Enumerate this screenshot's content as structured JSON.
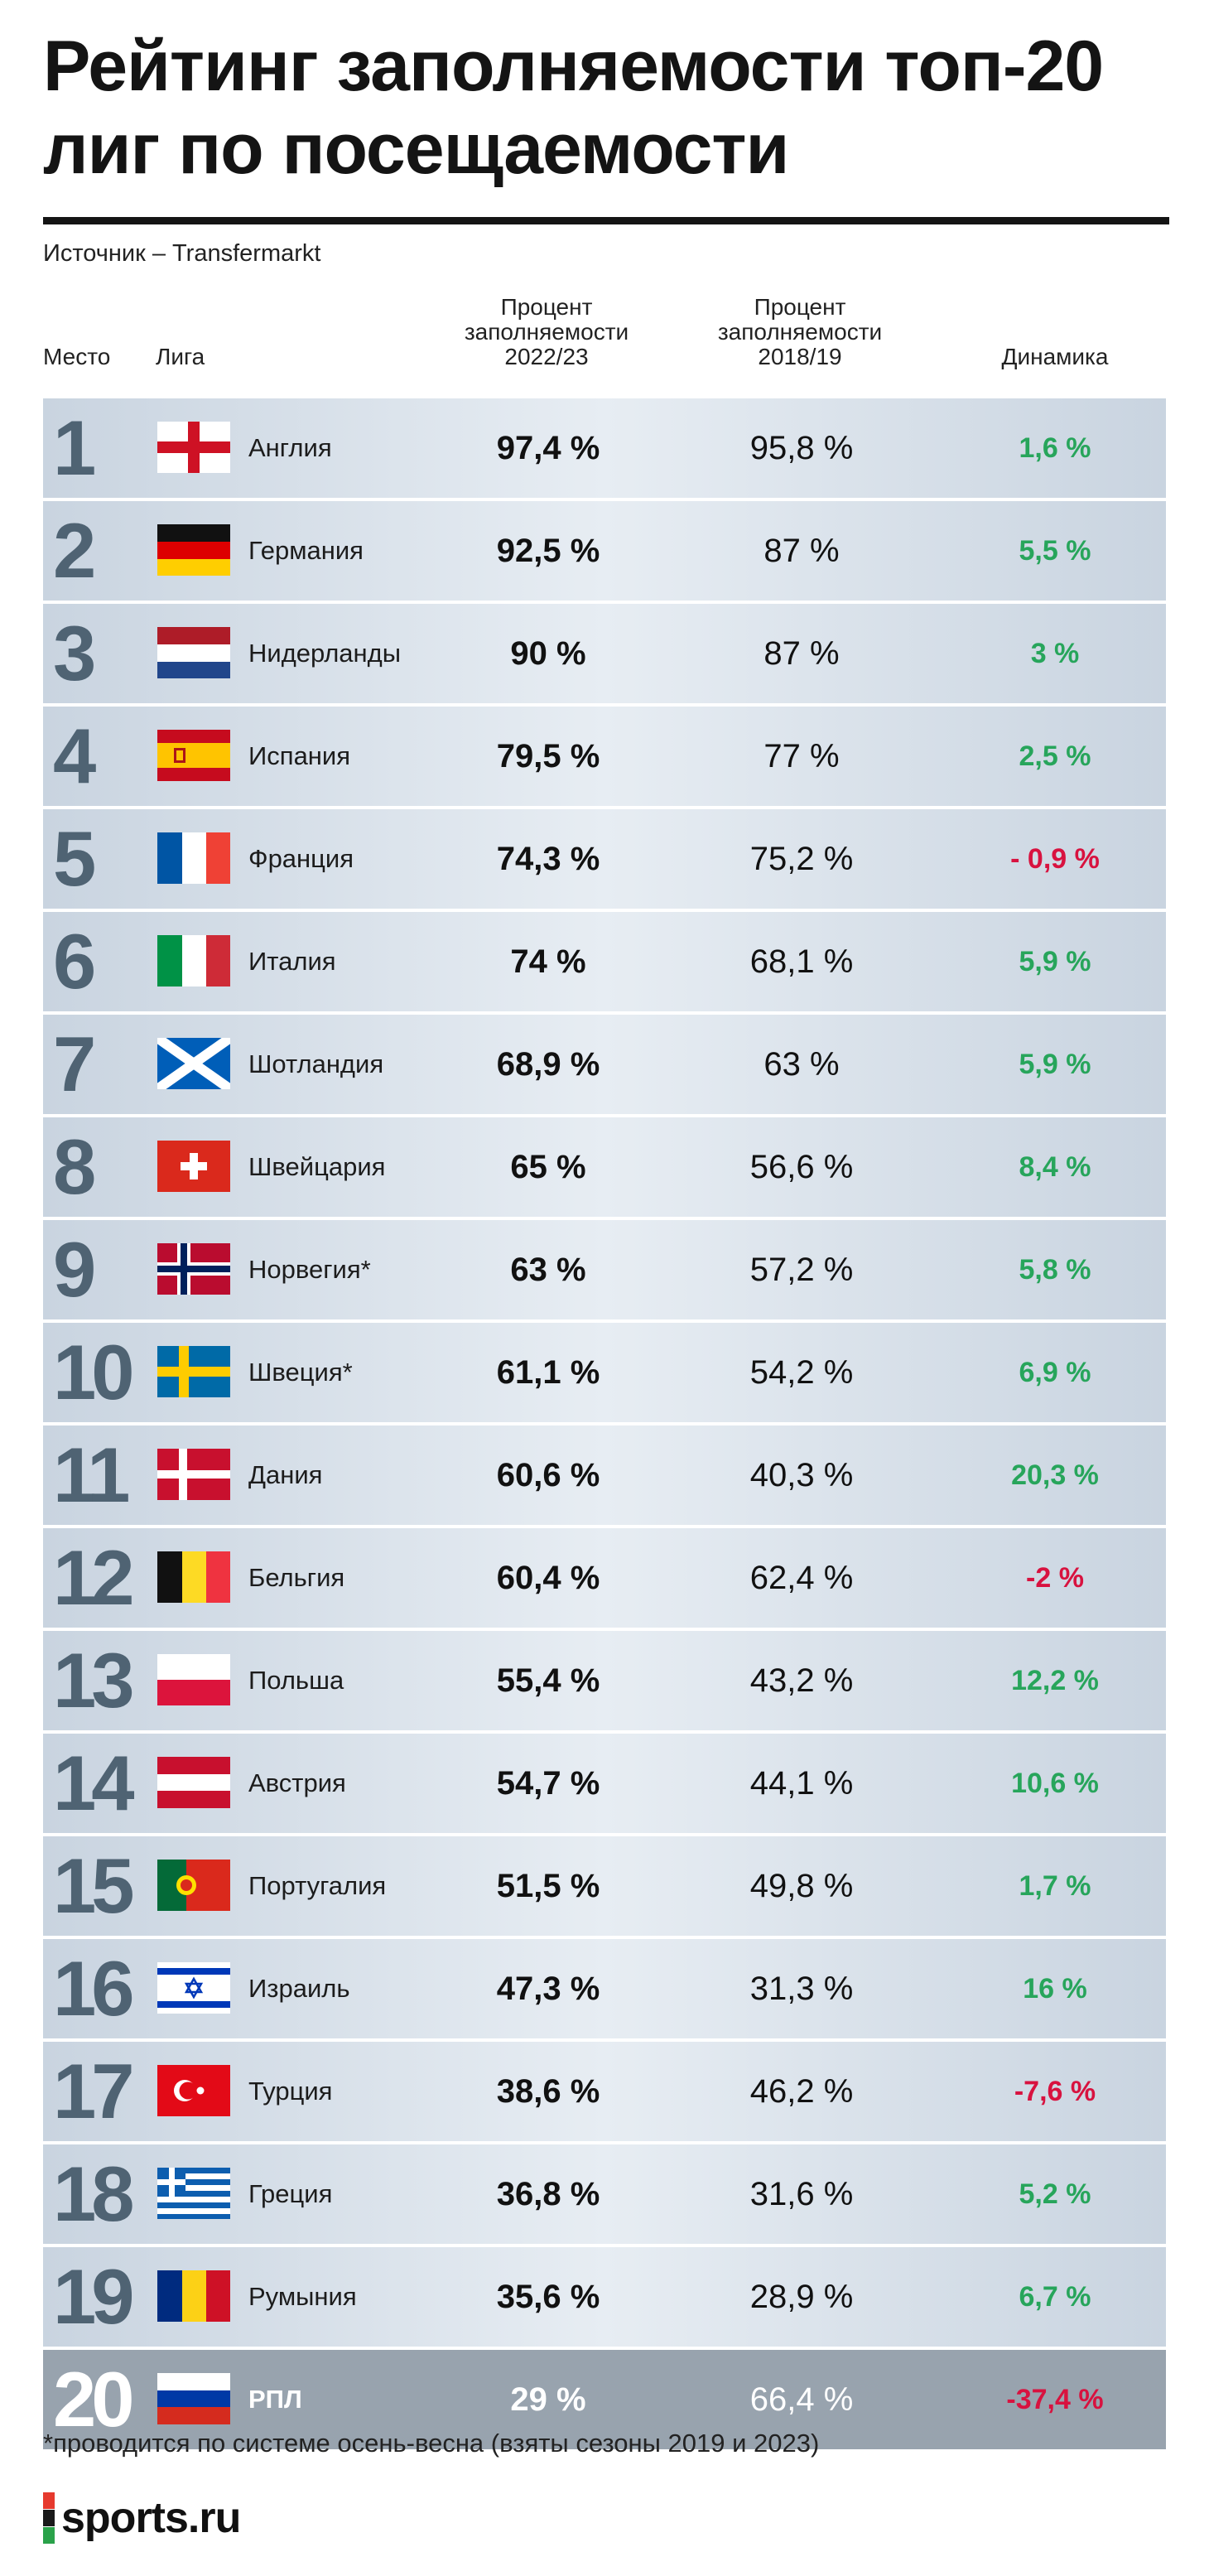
{
  "title": "Рейтинг заполняемости топ-20 лиг по посещаемости",
  "source": "Источник – Transfermarkt",
  "columns": {
    "place": "Место",
    "league": "Лига",
    "p2022": "Процент заполняемости 2022/23",
    "p2018": "Процент заполняемости 2018/19",
    "dynamics": "Динамика"
  },
  "colors": {
    "positive": "#27a55b",
    "negative": "#d8123f",
    "rank": "#4f6373",
    "highlight_row": "#98a3ae"
  },
  "chart_data": {
    "type": "table",
    "rows": [
      {
        "rank": "1",
        "flag": "england",
        "league": "Англия",
        "p2022": "97,4 %",
        "p2018": "95,8 %",
        "dyn": "1,6 %",
        "dyn_sign": "positive"
      },
      {
        "rank": "2",
        "flag": "germany",
        "league": "Германия",
        "p2022": "92,5 %",
        "p2018": "87 %",
        "dyn": "5,5 %",
        "dyn_sign": "positive"
      },
      {
        "rank": "3",
        "flag": "netherlands",
        "league": "Нидерланды",
        "p2022": "90 %",
        "p2018": "87 %",
        "dyn": "3 %",
        "dyn_sign": "positive"
      },
      {
        "rank": "4",
        "flag": "spain",
        "league": "Испания",
        "p2022": "79,5 %",
        "p2018": "77 %",
        "dyn": "2,5 %",
        "dyn_sign": "positive"
      },
      {
        "rank": "5",
        "flag": "france",
        "league": "Франция",
        "p2022": "74,3 %",
        "p2018": "75,2 %",
        "dyn": "- 0,9 %",
        "dyn_sign": "negative"
      },
      {
        "rank": "6",
        "flag": "italy",
        "league": "Италия",
        "p2022": "74 %",
        "p2018": "68,1 %",
        "dyn": "5,9 %",
        "dyn_sign": "positive"
      },
      {
        "rank": "7",
        "flag": "scotland",
        "league": "Шотландия",
        "p2022": "68,9 %",
        "p2018": "63 %",
        "dyn": "5,9 %",
        "dyn_sign": "positive"
      },
      {
        "rank": "8",
        "flag": "switzerland",
        "league": "Швейцария",
        "p2022": "65 %",
        "p2018": "56,6 %",
        "dyn": "8,4 %",
        "dyn_sign": "positive"
      },
      {
        "rank": "9",
        "flag": "norway",
        "league": "Норвегия*",
        "p2022": "63 %",
        "p2018": "57,2 %",
        "dyn": "5,8 %",
        "dyn_sign": "positive"
      },
      {
        "rank": "10",
        "flag": "sweden",
        "league": "Швеция*",
        "p2022": "61,1 %",
        "p2018": "54,2 %",
        "dyn": "6,9 %",
        "dyn_sign": "positive"
      },
      {
        "rank": "11",
        "flag": "denmark",
        "league": "Дания",
        "p2022": "60,6 %",
        "p2018": "40,3 %",
        "dyn": "20,3 %",
        "dyn_sign": "positive"
      },
      {
        "rank": "12",
        "flag": "belgium",
        "league": "Бельгия",
        "p2022": "60,4 %",
        "p2018": "62,4 %",
        "dyn": "-2 %",
        "dyn_sign": "negative"
      },
      {
        "rank": "13",
        "flag": "poland",
        "league": "Польша",
        "p2022": "55,4 %",
        "p2018": "43,2 %",
        "dyn": "12,2 %",
        "dyn_sign": "positive"
      },
      {
        "rank": "14",
        "flag": "austria",
        "league": "Австрия",
        "p2022": "54,7 %",
        "p2018": "44,1 %",
        "dyn": "10,6 %",
        "dyn_sign": "positive"
      },
      {
        "rank": "15",
        "flag": "portugal",
        "league": "Португалия",
        "p2022": "51,5 %",
        "p2018": "49,8 %",
        "dyn": "1,7 %",
        "dyn_sign": "positive"
      },
      {
        "rank": "16",
        "flag": "israel",
        "league": "Израиль",
        "p2022": "47,3 %",
        "p2018": "31,3 %",
        "dyn": "16 %",
        "dyn_sign": "positive"
      },
      {
        "rank": "17",
        "flag": "turkey",
        "league": "Турция",
        "p2022": "38,6 %",
        "p2018": "46,2 %",
        "dyn": "-7,6 %",
        "dyn_sign": "negative"
      },
      {
        "rank": "18",
        "flag": "greece",
        "league": "Греция",
        "p2022": "36,8 %",
        "p2018": "31,6 %",
        "dyn": "5,2 %",
        "dyn_sign": "positive"
      },
      {
        "rank": "19",
        "flag": "romania",
        "league": "Румыния",
        "p2022": "35,6 %",
        "p2018": "28,9 %",
        "dyn": "6,7 %",
        "dyn_sign": "positive"
      },
      {
        "rank": "20",
        "flag": "russia",
        "league": "РПЛ",
        "p2022": "29 %",
        "p2018": "66,4 %",
        "dyn": "-37,4 %",
        "dyn_sign": "negative",
        "highlight": true
      }
    ]
  },
  "footnote": "*проводится по системе осень-весна (взяты сезоны 2019 и 2023)",
  "logo": {
    "text": "sports.ru"
  }
}
